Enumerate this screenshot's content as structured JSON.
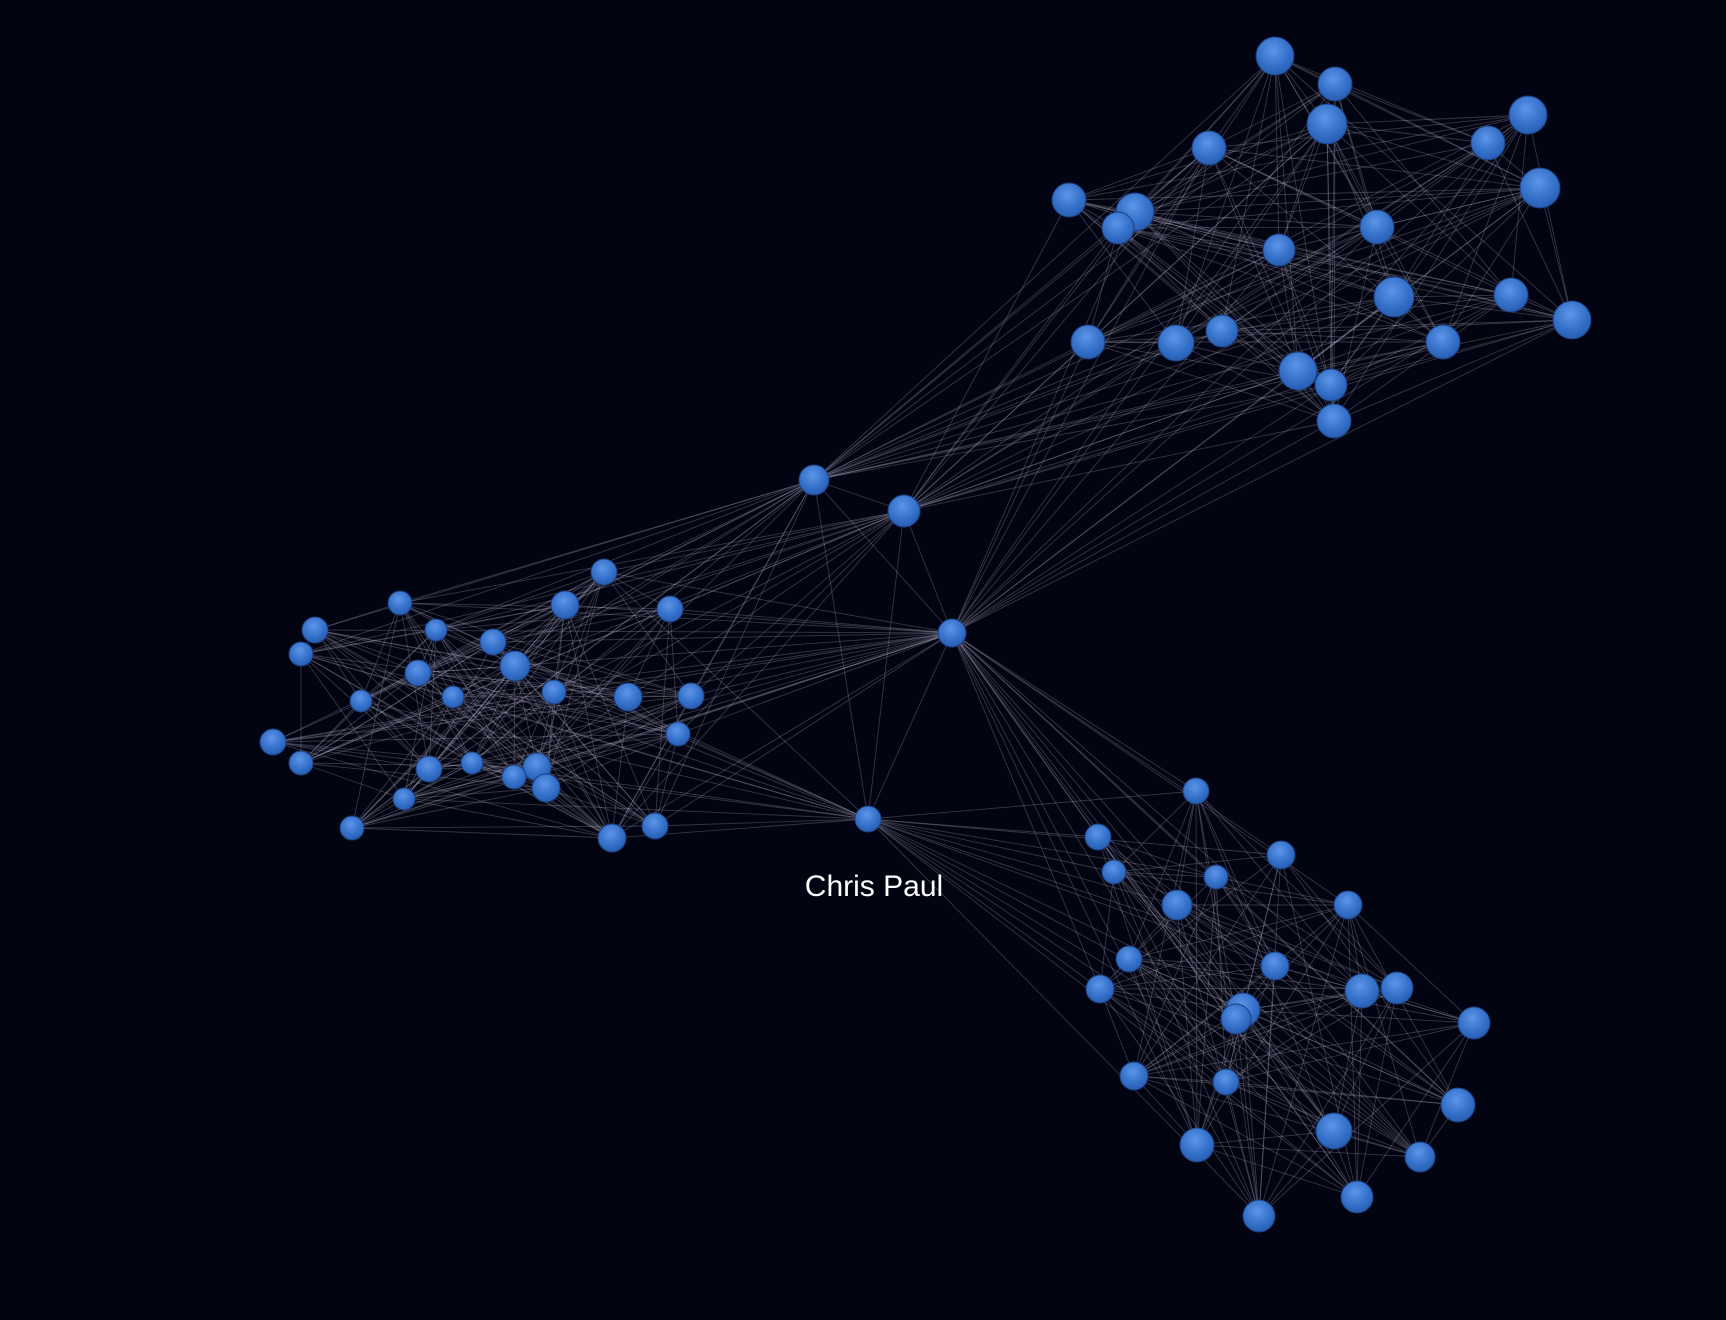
{
  "highlighted_node": {
    "label": "Chris Paul"
  },
  "colors": {
    "background": "#030411",
    "node_fill": "#2f6bc8",
    "node_highlight": "#5d95e8",
    "edge": "#c9c6dc",
    "label_text": "#ffffff"
  },
  "graph": {
    "layout": "force-directed",
    "clusters": [
      "upper-right",
      "left",
      "lower-right"
    ],
    "bridge_node_count": 4
  }
}
